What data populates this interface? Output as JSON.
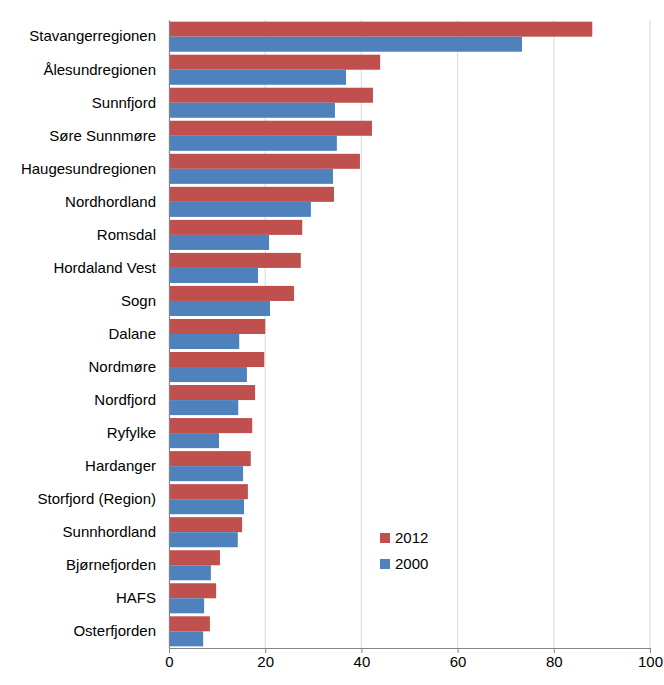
{
  "chart_data": {
    "type": "bar",
    "orientation": "horizontal",
    "categories": [
      "Stavangerregionen",
      "Ålesundregionen",
      "Sunnfjord",
      "Søre Sunnmøre",
      "Haugesundregionen",
      "Nordhordland",
      "Romsdal",
      "Hordaland Vest",
      "Sogn",
      "Dalane",
      "Nordmøre",
      "Nordfjord",
      "Ryfylke",
      "Hardanger",
      "Storfjord (Region)",
      "Sunnhordland",
      "Bjørnefjorden",
      "HAFS",
      "Osterfjorden"
    ],
    "series": [
      {
        "name": "2012",
        "color": "#c0504d",
        "values": [
          88.0,
          43.9,
          42.4,
          42.2,
          39.7,
          34.3,
          27.7,
          27.4,
          26.0,
          20.0,
          19.8,
          17.9,
          17.3,
          17.0,
          16.4,
          15.2,
          10.6,
          9.8,
          8.5
        ]
      },
      {
        "name": "2000",
        "color": "#4f81bd",
        "values": [
          73.4,
          36.8,
          34.5,
          34.9,
          34.1,
          29.5,
          20.8,
          18.5,
          21.0,
          14.6,
          16.2,
          14.4,
          10.4,
          15.4,
          15.6,
          14.3,
          8.7,
          7.3,
          7.1
        ]
      }
    ],
    "xlim": [
      0,
      100
    ],
    "xticks": [
      0,
      20,
      40,
      60,
      80,
      100
    ],
    "grid": true,
    "legend": "lower right"
  }
}
